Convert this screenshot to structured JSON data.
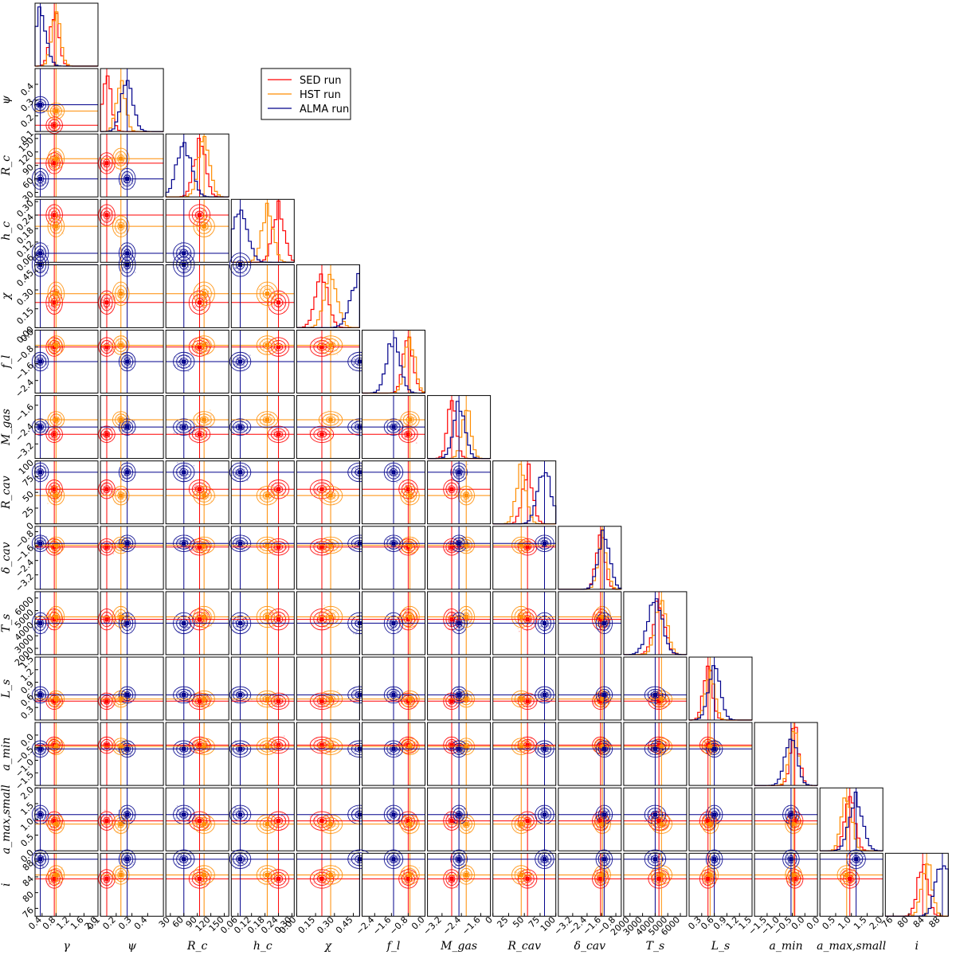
{
  "chart_data": {
    "type": "corner",
    "parameters": [
      {
        "symbol": "γ",
        "ticks": [
          "0.4",
          "0.8",
          "1.2",
          "1.6",
          "2.0"
        ],
        "range": [
          0.2,
          2.0
        ]
      },
      {
        "symbol": "ψ",
        "ticks": [
          "0.1",
          "0.2",
          "0.3",
          "0.4"
        ],
        "range": [
          0.1,
          0.5
        ]
      },
      {
        "symbol": "R_c",
        "ticks": [
          "30",
          "60",
          "90",
          "120",
          "150"
        ],
        "range": [
          20,
          160
        ]
      },
      {
        "symbol": "h_c",
        "ticks": [
          "0.06",
          "0.12",
          "0.18",
          "0.24",
          "0.30"
        ],
        "range": [
          0.03,
          0.31
        ]
      },
      {
        "symbol": "χ",
        "ticks": [
          "0.00",
          "0.15",
          "0.30",
          "0.45"
        ],
        "range": [
          0.0,
          0.5
        ]
      },
      {
        "symbol": "f_l",
        "ticks": [
          "−2.4",
          "−1.6",
          "−0.8",
          "0.0"
        ],
        "range": [
          -3.0,
          0.0
        ]
      },
      {
        "symbol": "M_gas",
        "ticks": [
          "−3.2",
          "−2.4",
          "−1.6"
        ],
        "range": [
          -3.8,
          -1.2
        ]
      },
      {
        "symbol": "R_cav",
        "ticks": [
          "0",
          "25",
          "50",
          "75",
          "100"
        ],
        "range": [
          0,
          100
        ]
      },
      {
        "symbol": "δ_cav",
        "ticks": [
          "−3.2",
          "−2.4",
          "−1.6",
          "−0.8"
        ],
        "range": [
          -4.0,
          -0.5
        ]
      },
      {
        "symbol": "T_s",
        "ticks": [
          "2000",
          "3000",
          "4000",
          "5000",
          "6000"
        ],
        "range": [
          1500,
          6500
        ]
      },
      {
        "symbol": "L_s",
        "ticks": [
          "0.3",
          "0.6",
          "0.9",
          "1.2",
          "1.5"
        ],
        "range": [
          0.0,
          1.5
        ]
      },
      {
        "symbol": "a_min",
        "ticks": [
          "−1.5",
          "−1.0",
          "−0.5",
          "0.0"
        ],
        "range": [
          -2.0,
          0.5
        ]
      },
      {
        "symbol": "a_max,small",
        "ticks": [
          "0.0",
          "0.5",
          "1.0",
          "1.5",
          "2.0"
        ],
        "range": [
          0.0,
          2.0
        ]
      },
      {
        "symbol": "i",
        "ticks": [
          "76",
          "80",
          "84",
          "88"
        ],
        "range": [
          74,
          90
        ]
      }
    ],
    "series": [
      {
        "name": "SED run",
        "color": "#ff0000",
        "medians": [
          0.75,
          0.14,
          95,
          0.24,
          0.2,
          -0.8,
          -2.8,
          55,
          -1.65,
          4300,
          0.45,
          -0.4,
          0.95,
          83.5
        ]
      },
      {
        "name": "HST run",
        "color": "#ff8c00",
        "medians": [
          0.8,
          0.23,
          105,
          0.19,
          0.27,
          -0.72,
          -2.2,
          45,
          -1.55,
          4500,
          0.5,
          -0.45,
          0.85,
          84.5
        ]
      },
      {
        "name": "ALMA run",
        "color": "#00008b",
        "medians": [
          0.35,
          0.27,
          60,
          0.07,
          0.5,
          -1.5,
          -2.5,
          82,
          -1.45,
          4000,
          0.6,
          -0.55,
          1.15,
          88.5
        ]
      }
    ],
    "legend_placement": "top, right of the diagonal"
  }
}
